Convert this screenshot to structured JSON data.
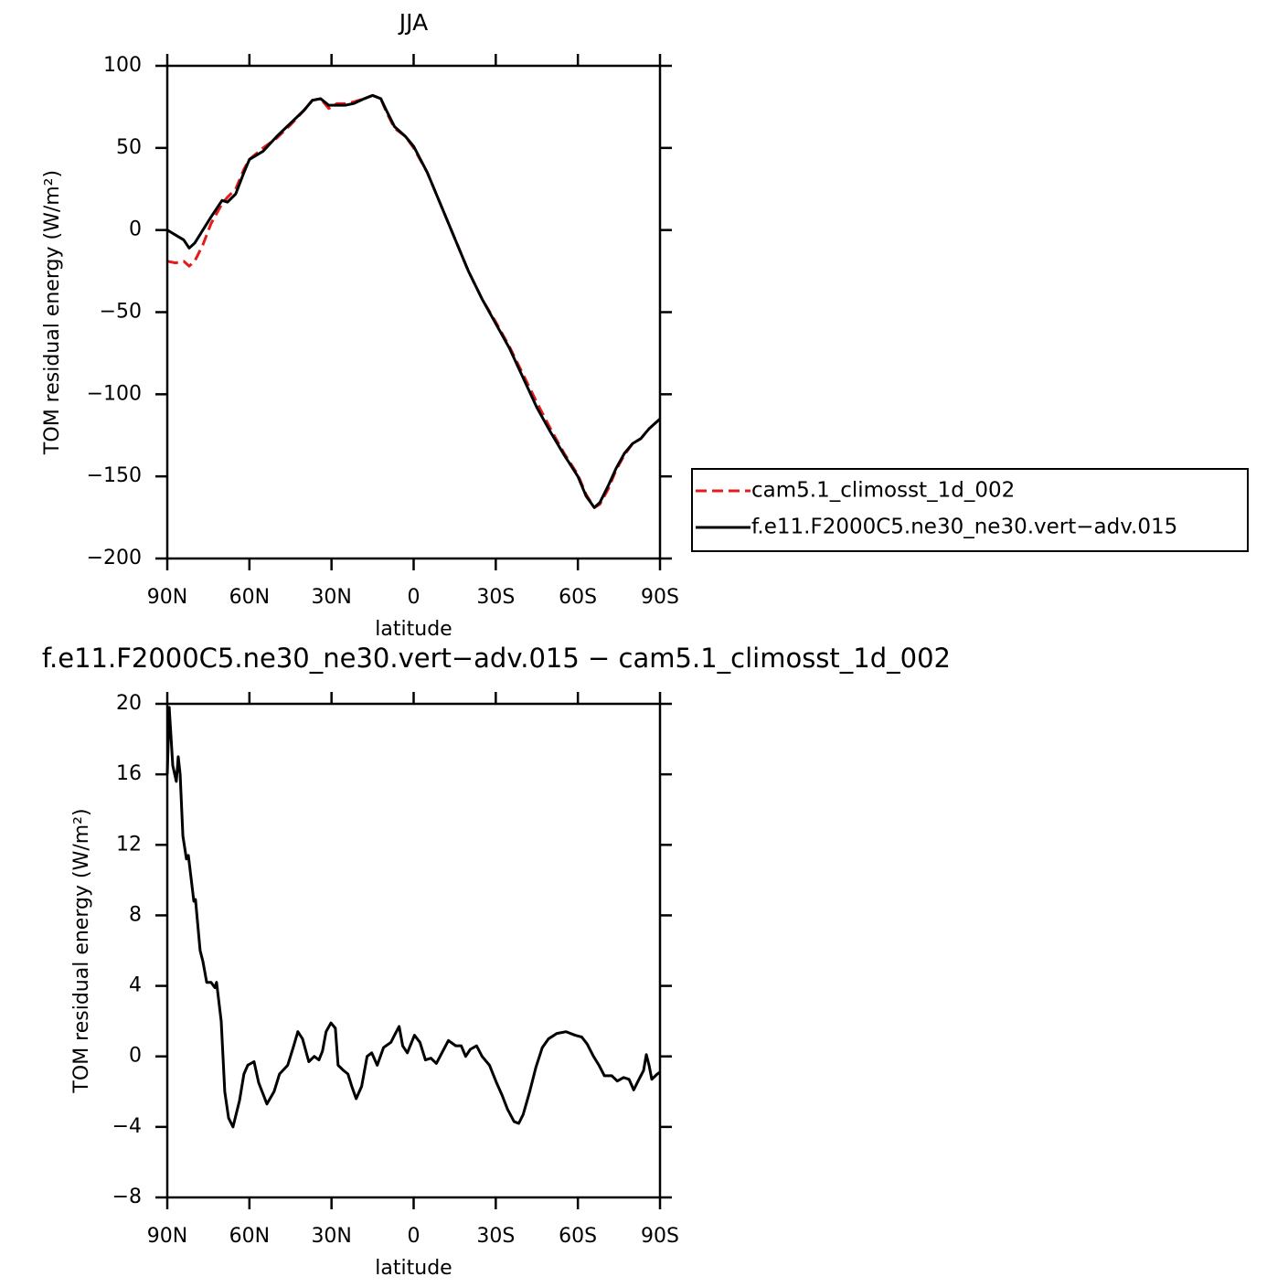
{
  "chart_data": [
    {
      "type": "line",
      "title": "JJA",
      "xlabel": "latitude",
      "ylabel": "TOM residual energy (W/m²)",
      "x": [
        90,
        87,
        84,
        82,
        80,
        77,
        74,
        70,
        68,
        65,
        62,
        60,
        55,
        50,
        45,
        40,
        37,
        34,
        31,
        28,
        25,
        22,
        18,
        15,
        12,
        10,
        7,
        3,
        0,
        -5,
        -10,
        -15,
        -20,
        -25,
        -30,
        -35,
        -40,
        -45,
        -50,
        -55,
        -60,
        -63,
        -66,
        -68,
        -71,
        -74,
        -77,
        -80,
        -83,
        -86,
        -90
      ],
      "series": [
        {
          "name": "cam5.1_climosst_1d_002",
          "color": "#e41a1c",
          "dash": true,
          "values": [
            -19,
            -20,
            -19,
            -22,
            -19,
            -9,
            4,
            16,
            20,
            25,
            37,
            43,
            50,
            56,
            64,
            73,
            79,
            80,
            74,
            77,
            77,
            78,
            80,
            82,
            80,
            72,
            62,
            57,
            50,
            35,
            15,
            -5,
            -25,
            -42,
            -56,
            -71,
            -88,
            -105,
            -121,
            -136,
            -149,
            -161,
            -169,
            -167,
            -158,
            -146,
            -137,
            -130,
            -127,
            -121,
            -115
          ]
        },
        {
          "name": "f.e11.F2000C5.ne30_ne30.vert−adv.015",
          "color": "#000000",
          "dash": false,
          "values": [
            0,
            -3,
            -6,
            -11,
            -8,
            0,
            8,
            18,
            17,
            22,
            35,
            43,
            48,
            57,
            65,
            73,
            79,
            80,
            76,
            76,
            76,
            77,
            80,
            82,
            80,
            73,
            63,
            57,
            51,
            35,
            15,
            -5,
            -25,
            -42,
            -57,
            -72,
            -90,
            -108,
            -123,
            -137,
            -150,
            -162,
            -169,
            -166,
            -156,
            -145,
            -136,
            -130,
            -127,
            -121,
            -115
          ]
        }
      ],
      "xlim": [
        90,
        -90
      ],
      "xticks": [
        {
          "value": 90,
          "label": "90N"
        },
        {
          "value": 60,
          "label": "60N"
        },
        {
          "value": 30,
          "label": "30N"
        },
        0,
        {
          "value": -30,
          "label": "30S"
        },
        {
          "value": -60,
          "label": "60S"
        },
        {
          "value": -90,
          "label": "90S"
        }
      ],
      "ylim": [
        -200,
        100
      ],
      "yticks": [
        {
          "value": -200,
          "label": "−200"
        },
        {
          "value": -150,
          "label": "−150"
        },
        {
          "value": -100,
          "label": "−100"
        },
        {
          "value": -50,
          "label": "−50"
        },
        0,
        50,
        100
      ],
      "legend": "right"
    },
    {
      "type": "line",
      "title": "f.e11.F2000C5.ne30_ne30.vert−adv.015 − cam5.1_climosst_1d_002",
      "xlabel": "latitude",
      "ylabel": "TOM residual energy (W/m²)",
      "x": [
        90,
        89.3,
        88,
        86.7,
        86,
        85.3,
        84.3,
        83,
        82.3,
        80.3,
        79.7,
        78,
        77,
        75.6,
        74,
        72.6,
        72,
        70.3,
        69,
        67.6,
        66,
        63.6,
        62,
        60.6,
        58.3,
        56.6,
        53.6,
        51,
        49,
        46,
        44,
        42.3,
        40.6,
        38.3,
        36.3,
        34.6,
        33.3,
        32,
        30.2,
        28.6,
        27.6,
        25.6,
        24,
        22.6,
        21,
        19,
        17,
        15.3,
        13.3,
        11,
        8.3,
        7,
        5.3,
        4,
        2.3,
        -0.3,
        -2.3,
        -4.3,
        -6.3,
        -8.3,
        -11,
        -12.7,
        -15.4,
        -17.4,
        -19,
        -20.7,
        -23,
        -25,
        -27.7,
        -30.3,
        -32.3,
        -34.3,
        -36.7,
        -38.4,
        -40,
        -42.4,
        -44.7,
        -47,
        -49.3,
        -52.3,
        -55.7,
        -59,
        -61.4,
        -63.4,
        -65.7,
        -67.7,
        -69.7,
        -72.4,
        -74.4,
        -76.7,
        -78.7,
        -80.4,
        -82,
        -84,
        -85,
        -86,
        -87,
        -89,
        -90
      ],
      "series": [
        {
          "color": "#000000",
          "dash": false,
          "values": [
            16,
            19.8,
            16.5,
            15.6,
            17,
            16,
            12.5,
            11.2,
            11.4,
            8.8,
            8.9,
            6,
            5.4,
            4.2,
            4.2,
            3.9,
            4.2,
            2,
            -2,
            -3.5,
            -4,
            -2.5,
            -1,
            -0.5,
            -0.3,
            -1.5,
            -2.7,
            -2,
            -1,
            -0.5,
            0.5,
            1.4,
            1,
            -0.3,
            0,
            -0.2,
            0.3,
            1.4,
            1.9,
            1.6,
            -0.5,
            -0.8,
            -1,
            -1.7,
            -2.4,
            -1.7,
            0,
            0.2,
            -0.5,
            0.5,
            0.8,
            1.2,
            1.7,
            0.6,
            0.2,
            1.2,
            0.8,
            -0.2,
            -0.1,
            -0.4,
            0.4,
            0.9,
            0.6,
            0.6,
            0,
            0.4,
            0.6,
            0,
            -0.5,
            -1.5,
            -2.2,
            -3,
            -3.7,
            -3.8,
            -3.3,
            -2,
            -0.6,
            0.5,
            1,
            1.3,
            1.4,
            1.2,
            1.1,
            0.7,
            0,
            -0.5,
            -1.1,
            -1.1,
            -1.4,
            -1.2,
            -1.3,
            -1.9,
            -1.4,
            -0.8,
            0.1,
            -0.5,
            -1.3,
            -1,
            -0.9
          ]
        }
      ],
      "xlim": [
        90,
        -90
      ],
      "xticks": [
        {
          "value": 90,
          "label": "90N"
        },
        {
          "value": 60,
          "label": "60N"
        },
        {
          "value": 30,
          "label": "30N"
        },
        0,
        {
          "value": -30,
          "label": "30S"
        },
        {
          "value": -60,
          "label": "60S"
        },
        {
          "value": -90,
          "label": "90S"
        }
      ],
      "ylim": [
        -8,
        20
      ],
      "yticks": [
        {
          "value": -8,
          "label": "−8"
        },
        {
          "value": -4,
          "label": "−4"
        },
        0,
        4,
        8,
        12,
        16,
        20
      ]
    }
  ]
}
